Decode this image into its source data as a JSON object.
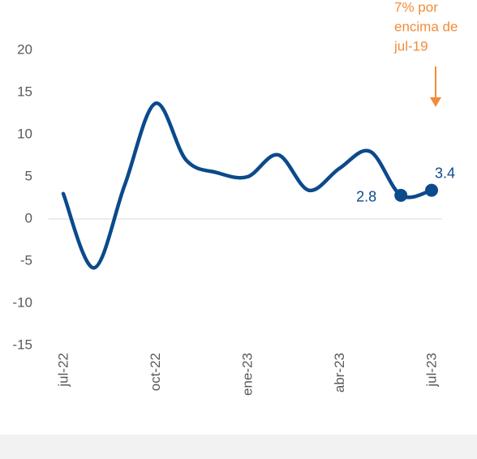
{
  "chart_data": {
    "type": "line",
    "categories": [
      "jul-22",
      null,
      null,
      "oct-22",
      null,
      null,
      "ene-23",
      null,
      null,
      "abr-23",
      null,
      null,
      "jul-23"
    ],
    "series": [
      {
        "color": "#0b4a8b",
        "values": [
          3,
          -5.8,
          4,
          13.7,
          7,
          5.5,
          5,
          7.6,
          3.4,
          6,
          8,
          2.8,
          3.4
        ]
      }
    ],
    "ylim": [
      -15,
      20
    ],
    "yticks": [
      20,
      15,
      10,
      5,
      0,
      -5,
      -10,
      -15
    ],
    "annotation": {
      "lines": [
        "7% por",
        "encima de",
        "jul-19"
      ],
      "color": "#f28c38"
    }
  }
}
